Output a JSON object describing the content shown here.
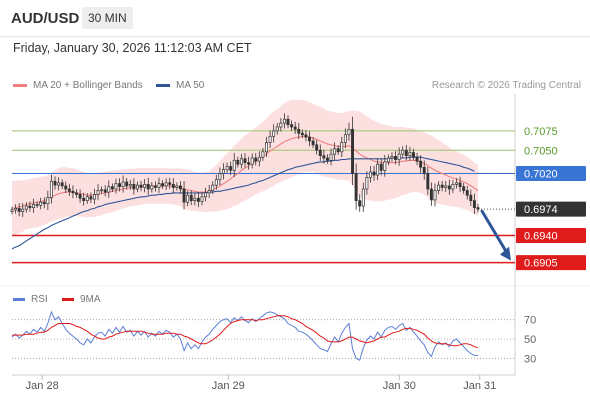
{
  "header": {
    "pair": "AUD/USD",
    "timeframe": "30 MIN"
  },
  "datetime": "Friday, January 30, 2026 11:12:03 AM CET",
  "legend": {
    "ma20": {
      "label": "MA 20 + Bollinger Bands",
      "color": "#f08080"
    },
    "ma50": {
      "label": "MA 50",
      "color": "#2f5597"
    }
  },
  "research": "Research © 2026 Trading Central",
  "rsi_legend": {
    "rsi": {
      "label": "RSI",
      "color": "#5b7fd6"
    },
    "ma9": {
      "label": "9MA",
      "color": "#e01b1b"
    }
  },
  "colors": {
    "up": "#ffffff",
    "down": "#333333",
    "resistance": "#9bc26b",
    "pivot": "#3a75d6",
    "support": "#e01b1b",
    "current": "#333333",
    "arrow": "#2f5597"
  },
  "chart_data": [
    {
      "type": "candlestick",
      "ylim": [
        0.688,
        0.712
      ],
      "x_ticks": [
        {
          "label": "Jan 28",
          "x": 0.06
        },
        {
          "label": "Jan 29",
          "x": 0.43
        },
        {
          "label": "Jan 30",
          "x": 0.77
        },
        {
          "label": "Jan 31",
          "x": 0.93
        }
      ],
      "levels": [
        {
          "label": "0.7075",
          "value": 0.7075,
          "kind": "resistance"
        },
        {
          "label": "0.7050",
          "value": 0.705,
          "kind": "resistance"
        },
        {
          "label": "0.7020",
          "value": 0.702,
          "kind": "pivot"
        },
        {
          "label": "0.6974",
          "value": 0.6974,
          "kind": "current"
        },
        {
          "label": "0.6940",
          "value": 0.694,
          "kind": "support"
        },
        {
          "label": "0.6905",
          "value": 0.6905,
          "kind": "support"
        }
      ],
      "close": [
        0.6973,
        0.6975,
        0.6971,
        0.6974,
        0.6978,
        0.6976,
        0.698,
        0.6979,
        0.6983,
        0.6981,
        0.6989,
        0.701,
        0.7005,
        0.7008,
        0.7004,
        0.7,
        0.6997,
        0.6995,
        0.6993,
        0.6988,
        0.6985,
        0.699,
        0.6987,
        0.6993,
        0.6998,
        0.6999,
        0.6996,
        0.7003,
        0.7,
        0.7007,
        0.7003,
        0.7009,
        0.7004,
        0.7006,
        0.7,
        0.7005,
        0.7002,
        0.7006,
        0.7,
        0.7004,
        0.7002,
        0.7007,
        0.7004,
        0.7008,
        0.7006,
        0.7002,
        0.7004,
        0.7,
        0.6983,
        0.6992,
        0.6985,
        0.6988,
        0.6984,
        0.699,
        0.6995,
        0.6998,
        0.7005,
        0.7012,
        0.702,
        0.7025,
        0.7029,
        0.7024,
        0.7037,
        0.7032,
        0.7039,
        0.7034,
        0.7032,
        0.704,
        0.7036,
        0.7041,
        0.7048,
        0.706,
        0.7068,
        0.7075,
        0.708,
        0.7085,
        0.709,
        0.7083,
        0.708,
        0.7077,
        0.7072,
        0.707,
        0.7067,
        0.7062,
        0.7057,
        0.705,
        0.7043,
        0.704,
        0.7037,
        0.7045,
        0.7052,
        0.7048,
        0.706,
        0.707,
        0.7077,
        0.702,
        0.6985,
        0.6978,
        0.7,
        0.7015,
        0.7022,
        0.7018,
        0.7032,
        0.7024,
        0.7035,
        0.704,
        0.7042,
        0.7038,
        0.7045,
        0.705,
        0.7043,
        0.7047,
        0.7041,
        0.7036,
        0.7028,
        0.702,
        0.7,
        0.6986,
        0.6998,
        0.7005,
        0.7002,
        0.7004,
        0.7,
        0.7006,
        0.7008,
        0.7003,
        0.6998,
        0.6992,
        0.6985,
        0.6976,
        0.6974
      ],
      "ma20": [
        0.6975,
        0.6976,
        0.6977,
        0.6978,
        0.698,
        0.6981,
        0.6982,
        0.6983,
        0.6984,
        0.6985,
        0.6987,
        0.699,
        0.6992,
        0.6994,
        0.6995,
        0.6996,
        0.6996,
        0.6996,
        0.6995,
        0.6994,
        0.6993,
        0.6992,
        0.6992,
        0.6992,
        0.6993,
        0.6994,
        0.6995,
        0.6996,
        0.6997,
        0.6998,
        0.6999,
        0.7,
        0.7001,
        0.7002,
        0.7002,
        0.7003,
        0.7003,
        0.7004,
        0.7004,
        0.7004,
        0.7004,
        0.7004,
        0.7004,
        0.7004,
        0.7004,
        0.7003,
        0.7003,
        0.7002,
        0.7,
        0.6999,
        0.6998,
        0.6997,
        0.6996,
        0.6996,
        0.6996,
        0.6997,
        0.6999,
        0.7001,
        0.7004,
        0.7007,
        0.701,
        0.7013,
        0.7017,
        0.702,
        0.7024,
        0.7027,
        0.703,
        0.7033,
        0.7036,
        0.7039,
        0.7042,
        0.7045,
        0.7049,
        0.7052,
        0.7055,
        0.7058,
        0.7061,
        0.7063,
        0.7065,
        0.7066,
        0.7067,
        0.7068,
        0.7068,
        0.7067,
        0.7066,
        0.7064,
        0.7062,
        0.706,
        0.7058,
        0.7057,
        0.7056,
        0.7055,
        0.7055,
        0.7055,
        0.7056,
        0.7053,
        0.7049,
        0.7045,
        0.7042,
        0.704,
        0.7038,
        0.7036,
        0.7035,
        0.7034,
        0.7034,
        0.7034,
        0.7034,
        0.7034,
        0.7035,
        0.7036,
        0.7036,
        0.7037,
        0.7037,
        0.7036,
        0.7035,
        0.7033,
        0.703,
        0.7027,
        0.7024,
        0.7022,
        0.702,
        0.7018,
        0.7016,
        0.7014,
        0.7013,
        0.7011,
        0.7009,
        0.7007,
        0.7004,
        0.7001,
        0.6998
      ],
      "ma50": [
        0.6923,
        0.6925,
        0.6927,
        0.693,
        0.6933,
        0.6936,
        0.6939,
        0.6942,
        0.6945,
        0.6948,
        0.695,
        0.6953,
        0.6955,
        0.6957,
        0.6959,
        0.6961,
        0.6963,
        0.6965,
        0.6967,
        0.6969,
        0.6971,
        0.6972,
        0.6974,
        0.6975,
        0.6977,
        0.6978,
        0.698,
        0.6981,
        0.6982,
        0.6983,
        0.6984,
        0.6985,
        0.6986,
        0.6987,
        0.6988,
        0.6989,
        0.699,
        0.699,
        0.6991,
        0.6992,
        0.6992,
        0.6993,
        0.6993,
        0.6994,
        0.6994,
        0.6995,
        0.6995,
        0.6995,
        0.6995,
        0.6995,
        0.6995,
        0.6995,
        0.6995,
        0.6995,
        0.6995,
        0.6996,
        0.6996,
        0.6997,
        0.6997,
        0.6998,
        0.6999,
        0.7,
        0.7001,
        0.7002,
        0.7003,
        0.7004,
        0.7005,
        0.7007,
        0.7008,
        0.701,
        0.7011,
        0.7013,
        0.7015,
        0.7017,
        0.7019,
        0.7021,
        0.7023,
        0.7025,
        0.7026,
        0.7028,
        0.7029,
        0.703,
        0.7031,
        0.7032,
        0.7033,
        0.7034,
        0.7035,
        0.7035,
        0.7036,
        0.7036,
        0.7037,
        0.7037,
        0.7038,
        0.7038,
        0.7039,
        0.7039,
        0.7039,
        0.7039,
        0.7039,
        0.7039,
        0.7039,
        0.7039,
        0.7039,
        0.7039,
        0.7039,
        0.7039,
        0.704,
        0.704,
        0.704,
        0.704,
        0.704,
        0.7041,
        0.7041,
        0.7041,
        0.7041,
        0.704,
        0.7039,
        0.7038,
        0.7037,
        0.7036,
        0.7035,
        0.7034,
        0.7033,
        0.7032,
        0.7031,
        0.703,
        0.7028,
        0.7027,
        0.7025,
        0.7023
      ],
      "bb_width": [
        0.0035,
        0.0035,
        0.0034,
        0.0033,
        0.0032,
        0.0032,
        0.0032,
        0.0032,
        0.0032,
        0.0031,
        0.0031,
        0.0032,
        0.0032,
        0.0033,
        0.0033,
        0.0032,
        0.0031,
        0.0031,
        0.003,
        0.003,
        0.0029,
        0.0029,
        0.0028,
        0.0028,
        0.0028,
        0.0028,
        0.0027,
        0.0027,
        0.0027,
        0.0026,
        0.0026,
        0.0025,
        0.0025,
        0.0024,
        0.0024,
        0.0024,
        0.0024,
        0.0023,
        0.0023,
        0.0023,
        0.0023,
        0.0023,
        0.0023,
        0.0023,
        0.0023,
        0.0023,
        0.0024,
        0.0024,
        0.0026,
        0.0026,
        0.0026,
        0.0025,
        0.0025,
        0.0025,
        0.0026,
        0.0026,
        0.0028,
        0.003,
        0.0032,
        0.0034,
        0.0036,
        0.0037,
        0.0039,
        0.004,
        0.0041,
        0.0042,
        0.0042,
        0.0043,
        0.0043,
        0.0044,
        0.0045,
        0.0046,
        0.0047,
        0.0048,
        0.0048,
        0.0049,
        0.005,
        0.005,
        0.005,
        0.0049,
        0.0048,
        0.0047,
        0.0046,
        0.0045,
        0.0044,
        0.0044,
        0.0044,
        0.0044,
        0.0043,
        0.0043,
        0.0043,
        0.0043,
        0.0043,
        0.0044,
        0.0045,
        0.0048,
        0.0052,
        0.0055,
        0.0055,
        0.0054,
        0.0053,
        0.0052,
        0.0051,
        0.005,
        0.0049,
        0.0048,
        0.0047,
        0.0046,
        0.0045,
        0.0044,
        0.0043,
        0.0042,
        0.0041,
        0.004,
        0.004,
        0.004,
        0.0041,
        0.0042,
        0.0042,
        0.0041,
        0.004,
        0.0039,
        0.0038,
        0.0037,
        0.0036,
        0.0035,
        0.0035,
        0.0034,
        0.0034,
        0.0033,
        0.0033
      ]
    },
    {
      "type": "line",
      "ylim": [
        20,
        80
      ],
      "y_ticks": [
        70,
        50,
        30
      ],
      "rsi": [
        52,
        55,
        51,
        54,
        58,
        55,
        60,
        57,
        62,
        58,
        66,
        78,
        70,
        73,
        66,
        60,
        56,
        53,
        50,
        46,
        44,
        50,
        46,
        52,
        56,
        57,
        53,
        60,
        56,
        62,
        57,
        63,
        57,
        59,
        53,
        58,
        54,
        58,
        52,
        56,
        53,
        58,
        55,
        59,
        57,
        52,
        55,
        50,
        38,
        46,
        40,
        44,
        40,
        47,
        52,
        55,
        60,
        64,
        68,
        70,
        71,
        67,
        72,
        69,
        73,
        69,
        67,
        71,
        68,
        71,
        74,
        77,
        78,
        77,
        75,
        73,
        71,
        66,
        64,
        62,
        58,
        57,
        55,
        52,
        48,
        44,
        40,
        39,
        37,
        45,
        52,
        47,
        56,
        62,
        66,
        40,
        30,
        28,
        41,
        49,
        53,
        50,
        57,
        52,
        59,
        62,
        63,
        60,
        64,
        66,
        59,
        62,
        57,
        53,
        48,
        44,
        36,
        32,
        42,
        47,
        44,
        46,
        42,
        48,
        50,
        46,
        42,
        38,
        35,
        33,
        33
      ],
      "ma9": [
        54,
        54,
        54,
        54,
        55,
        55,
        55,
        56,
        57,
        57,
        59,
        62,
        64,
        66,
        66,
        66,
        66,
        65,
        63,
        62,
        60,
        58,
        55,
        53,
        51,
        50,
        50,
        52,
        53,
        55,
        56,
        57,
        58,
        58,
        58,
        58,
        58,
        57,
        56,
        55,
        55,
        55,
        55,
        56,
        56,
        56,
        55,
        55,
        53,
        52,
        50,
        48,
        46,
        45,
        45,
        47,
        49,
        52,
        55,
        59,
        63,
        66,
        68,
        69,
        70,
        70,
        70,
        70,
        69,
        70,
        70,
        71,
        72,
        73,
        74,
        74,
        74,
        73,
        71,
        70,
        68,
        66,
        63,
        61,
        59,
        56,
        53,
        51,
        48,
        47,
        47,
        47,
        48,
        50,
        52,
        52,
        50,
        48,
        47,
        46,
        47,
        48,
        50,
        52,
        52,
        54,
        56,
        57,
        58,
        60,
        61,
        61,
        60,
        59,
        57,
        55,
        51,
        48,
        46,
        45,
        45,
        45,
        44,
        43,
        43,
        44,
        45,
        45,
        44,
        42,
        41
      ]
    }
  ]
}
